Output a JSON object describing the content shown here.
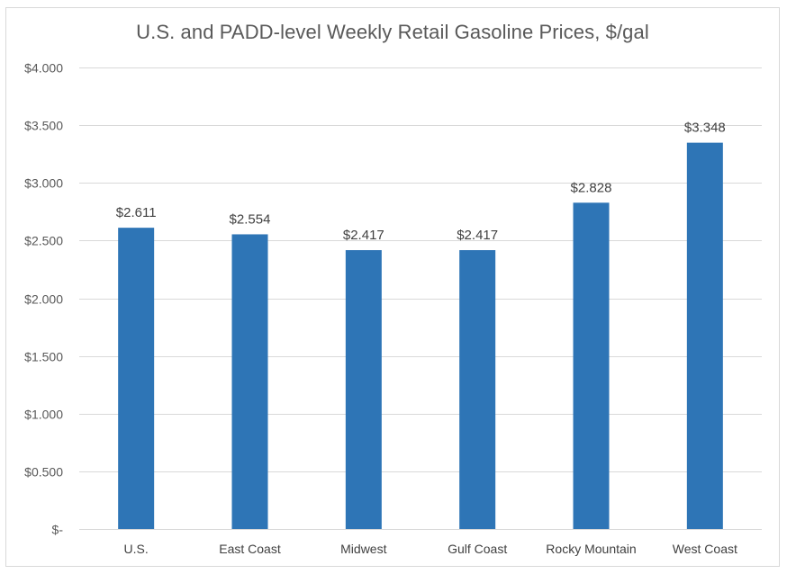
{
  "chart_data": {
    "type": "bar",
    "title": "U.S. and PADD-level Weekly Retail Gasoline Prices, $/gal",
    "categories": [
      "U.S.",
      "East Coast",
      "Midwest",
      "Gulf Coast",
      "Rocky Mountain",
      "West Coast"
    ],
    "values": [
      2.611,
      2.554,
      2.417,
      2.417,
      2.828,
      3.348
    ],
    "data_labels": [
      "$2.611",
      "$2.554",
      "$2.417",
      "$2.417",
      "$2.828",
      "$3.348"
    ],
    "ylim": [
      0,
      4
    ],
    "yticks": [
      0,
      0.5,
      1,
      1.5,
      2,
      2.5,
      3,
      3.5,
      4
    ],
    "ytick_labels": [
      "$-",
      "$0.500",
      "$1.000",
      "$1.500",
      "$2.000",
      "$2.500",
      "$3.000",
      "$3.500",
      "$4.000"
    ],
    "xlabel": "",
    "ylabel": "",
    "grid": true,
    "legend": "none",
    "bar_color": "#2e75b6",
    "grid_color": "#d9d9d9"
  }
}
